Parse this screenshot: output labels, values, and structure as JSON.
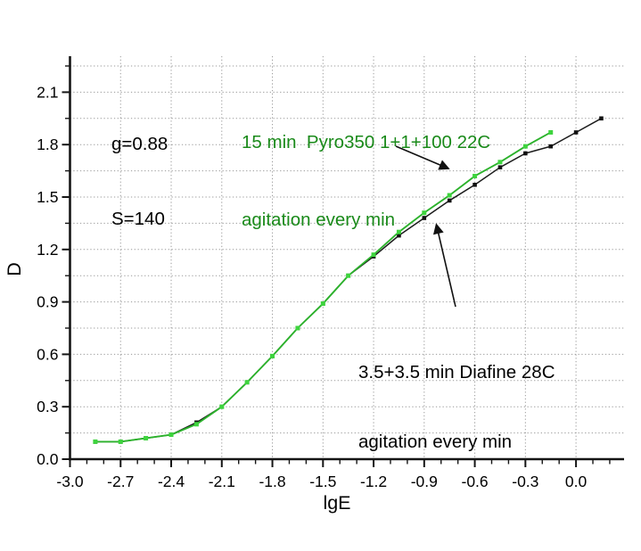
{
  "colors": {
    "background": "#ffffff",
    "axis": "#151515",
    "grid": "#9c9c9c",
    "text": "#000000",
    "green_line": "#2cb22c",
    "green_marker": "#3ed43e",
    "green_text": "#1a8a1a",
    "black_line": "#1c1c1c",
    "black_marker": "#111111"
  },
  "annotations": {
    "params": {
      "line1": "g=0.88",
      "line2": "S=140"
    },
    "green_label": {
      "line1": "15 min  Pyro350 1+1+100 22C",
      "line2": "agitation every min"
    },
    "black_label": {
      "line1": "3.5+3.5 min Diafine 28C",
      "line2": "agitation every min"
    }
  },
  "chart_data": {
    "type": "line",
    "title": "",
    "xlabel": "lgE",
    "ylabel": "D",
    "xlim": [
      -3.0,
      0.28
    ],
    "ylim": [
      0,
      2.33
    ],
    "grid": "dotted",
    "legend_position": "none",
    "x_ticks": {
      "values": [
        -3.0,
        -2.7,
        -2.4,
        -2.1,
        -1.8,
        -1.5,
        -1.2,
        -0.9,
        -0.6,
        -0.3,
        0.0
      ],
      "labels": [
        "-3.0",
        "-2.7",
        "-2.4",
        "-2.1",
        "-1.8",
        "-1.5",
        "-1.2",
        "-0.9",
        "-0.6",
        "-0.3",
        "0.0"
      ]
    },
    "y_ticks": {
      "values": [
        0.0,
        0.3,
        0.6,
        0.9,
        1.2,
        1.5,
        1.8,
        2.1
      ],
      "labels": [
        "0.0",
        "0.3",
        "0.6",
        "0.9",
        "1.2",
        "1.5",
        "1.8",
        "2.1"
      ]
    },
    "x_minor_step": 0.1,
    "y_minor_step": 0.15,
    "series": [
      {
        "name": "3.5+3.5 min Diafine 28C agitation every min",
        "color_key": "black",
        "marker": "square",
        "x": [
          -2.85,
          -2.7,
          -2.55,
          -2.4,
          -2.25,
          -2.1,
          -1.95,
          -1.8,
          -1.65,
          -1.5,
          -1.35,
          -1.2,
          -1.05,
          -0.9,
          -0.75,
          -0.6,
          -0.45,
          -0.3,
          -0.15,
          0.0,
          0.15
        ],
        "y": [
          0.1,
          0.1,
          0.12,
          0.14,
          0.21,
          0.3,
          0.44,
          0.59,
          0.75,
          0.89,
          1.05,
          1.16,
          1.28,
          1.38,
          1.48,
          1.57,
          1.67,
          1.75,
          1.79,
          1.87,
          1.95
        ]
      },
      {
        "name": "15 min Pyro350 1+1+100 22C agitation every min",
        "color_key": "green",
        "marker": "square",
        "x": [
          -2.85,
          -2.7,
          -2.55,
          -2.4,
          -2.25,
          -2.1,
          -1.95,
          -1.8,
          -1.65,
          -1.5,
          -1.35,
          -1.2,
          -1.05,
          -0.9,
          -0.75,
          -0.6,
          -0.45,
          -0.3,
          -0.15
        ],
        "y": [
          0.1,
          0.1,
          0.12,
          0.14,
          0.2,
          0.3,
          0.44,
          0.59,
          0.75,
          0.89,
          1.05,
          1.17,
          1.3,
          1.41,
          1.51,
          1.62,
          1.7,
          1.79,
          1.87
        ]
      }
    ]
  }
}
